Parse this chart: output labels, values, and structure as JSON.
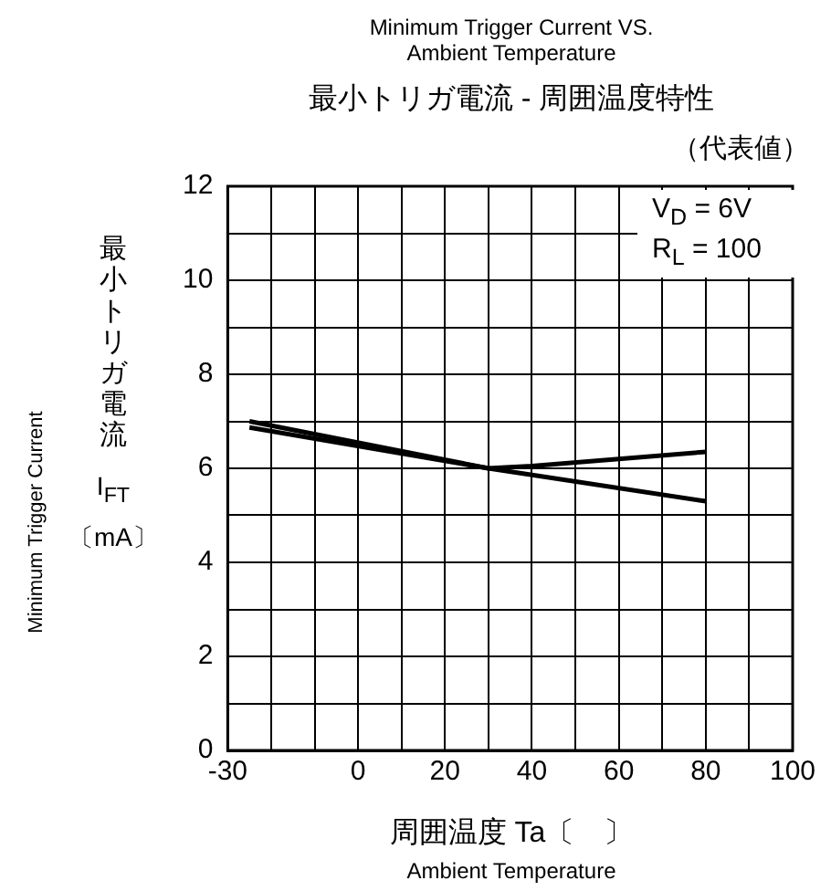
{
  "chart_data": {
    "type": "line",
    "title": "Minimum Trigger Current VS. Ambient Temperature",
    "subtitle": "最小トリガ電流 - 周囲温度特性",
    "xlabel": "周囲温度 Ta〔　〕",
    "ylabel": "最小トリガ電流 I$_{FT}$ 〔mA〕",
    "annotations": [
      "（代表値）",
      "V$_{D}$ = 6V",
      "R$_{L}$ = 100",
      "Minimum Trigger Current",
      "Ambient Temperature"
    ],
    "series": [
      {
        "color": "#000000",
        "x": [
          -25,
          30,
          40,
          60,
          80
        ],
        "values": [
          7.0,
          6.0,
          6.05,
          6.2,
          6.35
        ]
      },
      {
        "color": "#000000",
        "x": [
          -25,
          30,
          80
        ],
        "values": [
          6.87,
          6.0,
          5.3
        ]
      }
    ],
    "xlim": [
      -30,
      100
    ],
    "xticks": [
      -30,
      {
        "value": -20,
        "label": null
      },
      {
        "value": -10,
        "label": null
      },
      0,
      {
        "value": 10,
        "label": null
      },
      20,
      {
        "value": 30,
        "label": null
      },
      40,
      {
        "value": 50,
        "label": null
      },
      60,
      {
        "value": 70,
        "label": null
      },
      80,
      {
        "value": 90,
        "label": null
      },
      100
    ],
    "ylim": [
      0,
      12
    ],
    "yticks": [
      0,
      {
        "value": 1,
        "label": null
      },
      2,
      {
        "value": 3,
        "label": null
      },
      4,
      {
        "value": 5,
        "label": null
      },
      6,
      {
        "value": 7,
        "label": null
      },
      8,
      {
        "value": 9,
        "label": null
      },
      10,
      {
        "value": 11,
        "label": null
      },
      12
    ],
    "grid": true,
    "legend": false,
    "marker": "none",
    "line_style": "solid"
  }
}
